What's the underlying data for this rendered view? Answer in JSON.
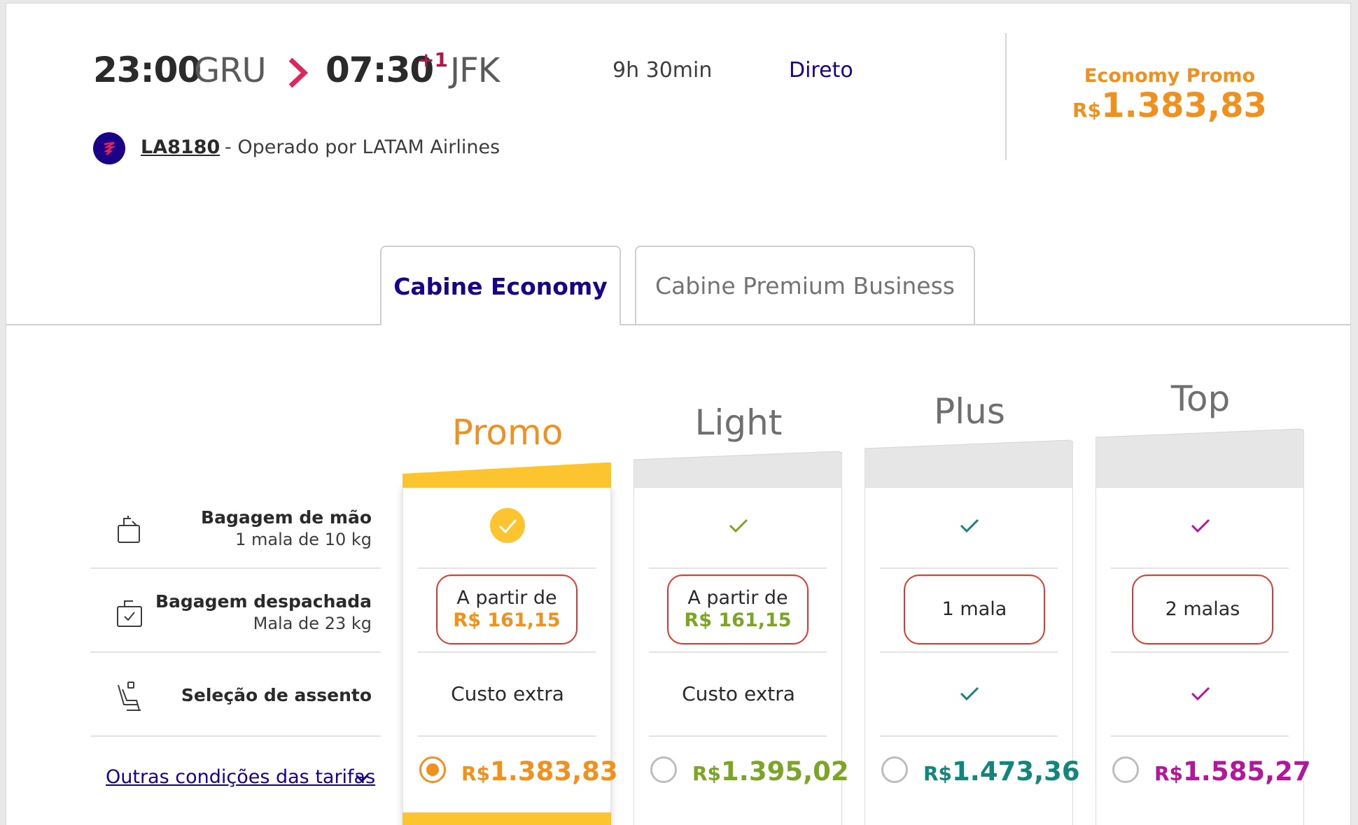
{
  "flight": {
    "departure_time": "23:00",
    "departure_airport": "GRU",
    "arrival_time": "07:30",
    "arrival_plus_days": "+1",
    "arrival_airport": "JFK",
    "duration": "9h 30min",
    "stops": "Direto",
    "flight_number": "LA8180",
    "operated_by": " - Operado por LATAM Airlines"
  },
  "selected_fare": {
    "label": "Economy Promo",
    "currency": "R$",
    "amount": "1.383,83"
  },
  "tabs": [
    {
      "label": "Cabine Economy",
      "active": true
    },
    {
      "label": "Cabine Premium Business",
      "active": false
    }
  ],
  "rows": [
    {
      "title": "Bagagem de mão",
      "subtitle": "1 mala de 10 kg",
      "icon": "carry-on-bag-icon"
    },
    {
      "title": "Bagagem despachada",
      "subtitle": "Mala de 23 kg",
      "icon": "checked-bag-icon"
    },
    {
      "title": "Seleção de assento",
      "subtitle": "",
      "icon": "seat-icon"
    }
  ],
  "other_conditions_link": "Outras condições das tarifas",
  "fares": [
    {
      "name": "Promo",
      "color": "#f0901e",
      "selected": true,
      "carry_on": "check-circle",
      "checked_bag_line1": "A partir de",
      "checked_bag_line2": "R$ 161,15",
      "seat": "Custo extra",
      "currency": "R$",
      "amount": "1.383,83"
    },
    {
      "name": "Light",
      "color": "#7ba428",
      "selected": false,
      "carry_on": "check",
      "checked_bag_line1": "A partir de",
      "checked_bag_line2": "R$ 161,15",
      "seat": "Custo extra",
      "currency": "R$",
      "amount": "1.395,02"
    },
    {
      "name": "Plus",
      "color": "#14857a",
      "selected": false,
      "carry_on": "check",
      "checked_bag_line1": "1 mala",
      "checked_bag_line2": "",
      "seat": "check",
      "currency": "R$",
      "amount": "1.473,36"
    },
    {
      "name": "Top",
      "color": "#b0179a",
      "selected": false,
      "carry_on": "check",
      "checked_bag_line1": "2 malas",
      "checked_bag_line2": "",
      "seat": "check",
      "currency": "R$",
      "amount": "1.585,27"
    }
  ],
  "colors": {
    "brand_indigo": "#1b0088",
    "accent_orange": "#f0901e",
    "promo_yellow": "#fcc52f",
    "highlight_red": "#e0382d"
  }
}
